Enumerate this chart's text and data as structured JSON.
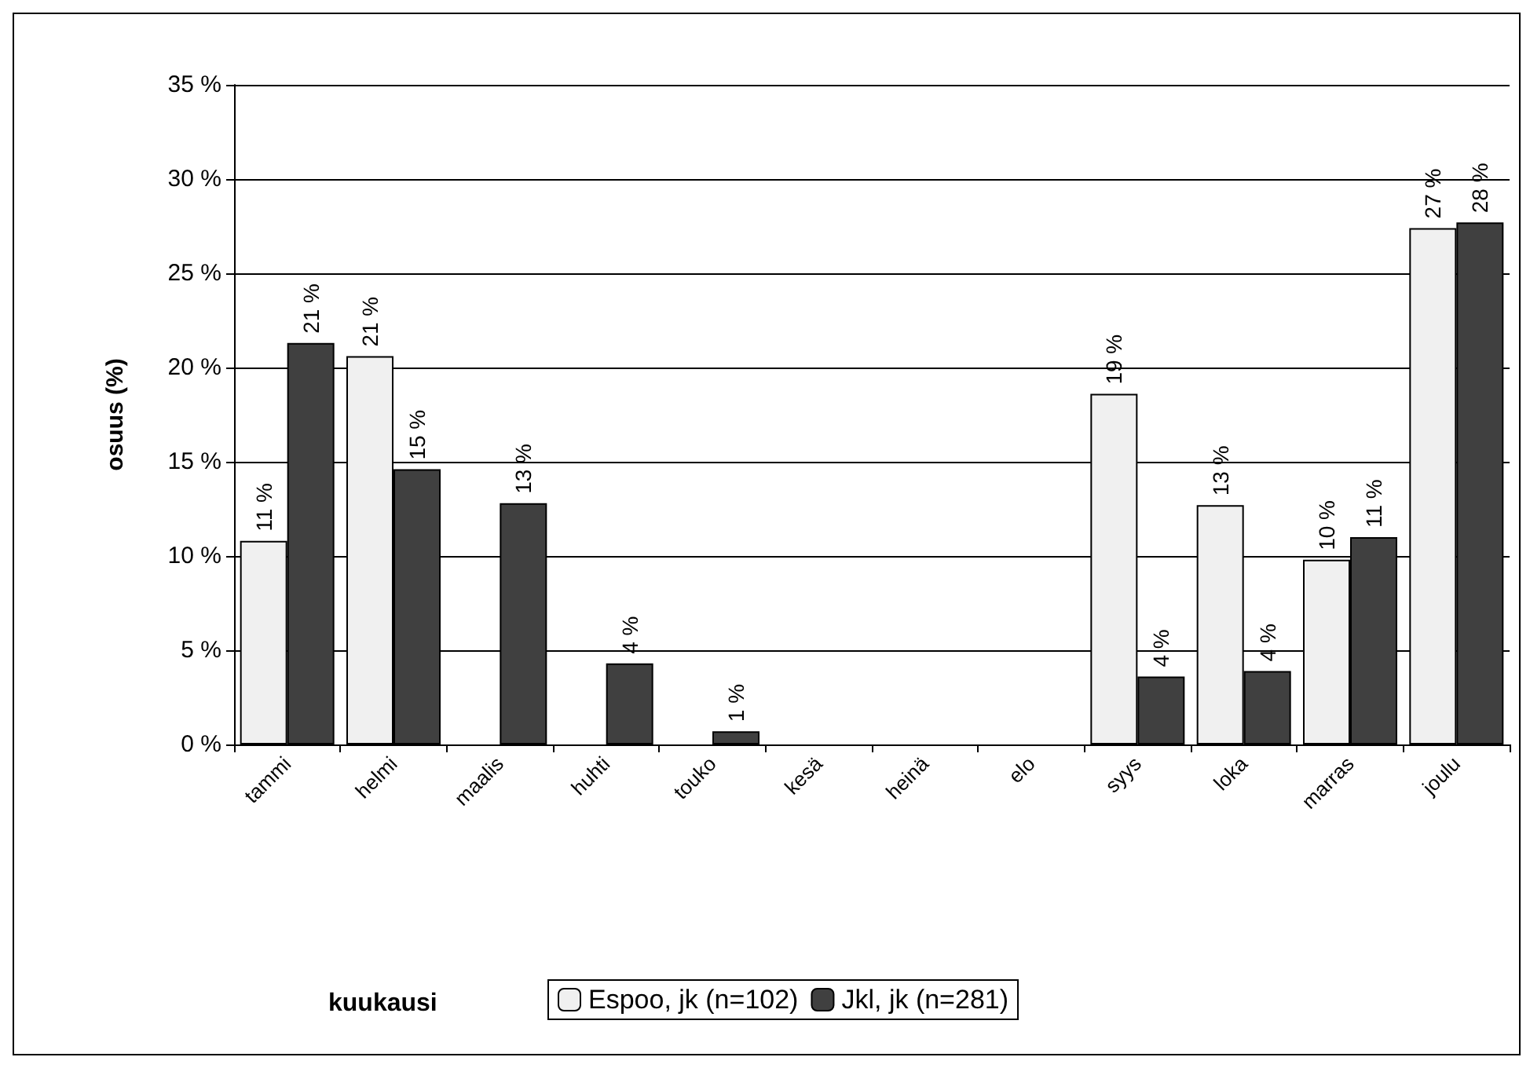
{
  "chart_data": {
    "type": "bar",
    "annotations": [
      "kuukausi"
    ],
    "ylabel": "osuus (%)",
    "categories": [
      "tammi",
      "helmi",
      "maalis",
      "huhti",
      "touko",
      "kesä",
      "heinä",
      "elo",
      "syys",
      "loka",
      "marras",
      "joulu"
    ],
    "series": [
      {
        "name": "Espoo, jk (n=102)",
        "color": "#f0f0f0",
        "values": [
          10.8,
          20.6,
          0,
          0,
          0,
          0,
          0,
          0,
          18.6,
          12.7,
          9.8,
          27.4
        ],
        "value_labels": [
          "11 %",
          "21 %",
          null,
          null,
          null,
          null,
          null,
          null,
          "19 %",
          "13 %",
          "10 %",
          "27 %"
        ]
      },
      {
        "name": "Jkl, jk (n=281)",
        "color": "#404040",
        "values": [
          21.3,
          14.6,
          12.8,
          4.3,
          0.7,
          0,
          0,
          0,
          3.6,
          3.9,
          11.0,
          27.7
        ],
        "value_labels": [
          "21 %",
          "15 %",
          "13 %",
          "4 %",
          "1 %",
          null,
          null,
          null,
          "4 %",
          "4 %",
          "11 %",
          "28 %"
        ]
      }
    ],
    "ylim": [
      0,
      35
    ],
    "yticks": [
      {
        "value": 0,
        "label": "0 %"
      },
      {
        "value": 5,
        "label": "5 %"
      },
      {
        "value": 10,
        "label": "10 %"
      },
      {
        "value": 15,
        "label": "15 %"
      },
      {
        "value": 20,
        "label": "20 %"
      },
      {
        "value": 25,
        "label": "25 %"
      },
      {
        "value": 30,
        "label": "30 %"
      },
      {
        "value": 35,
        "label": "35 %"
      }
    ],
    "grid": "y",
    "legend": "bottom"
  }
}
